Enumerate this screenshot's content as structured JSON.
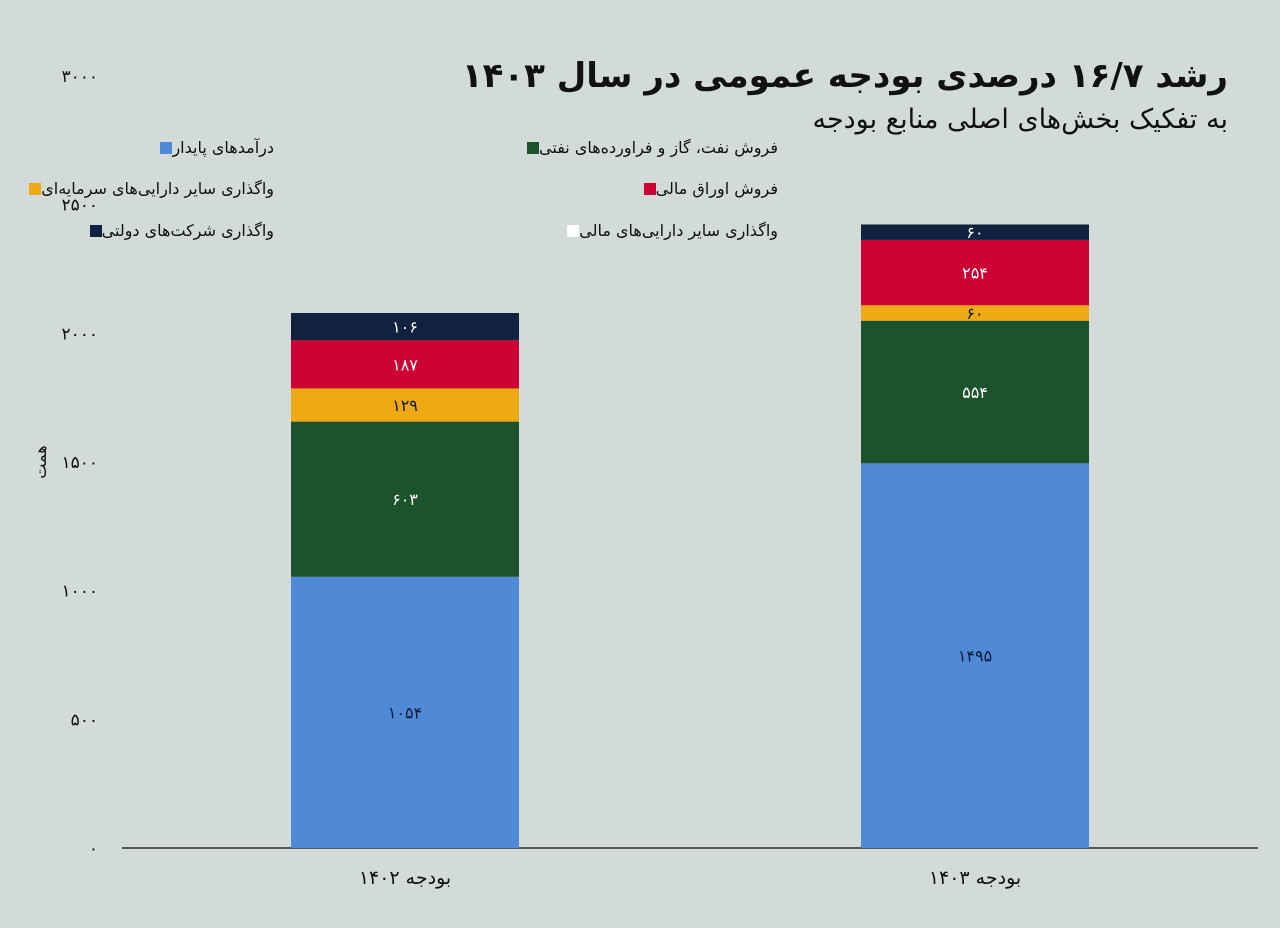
{
  "chart_data": {
    "type": "bar",
    "stacked": true,
    "title": "رشد ۱۶/۷ درصدی بودجه عمومی در سال ۱۴۰۳",
    "subtitle": "به تفکیک بخش‌های اصلی منابع بودجه",
    "ylabel": "همت",
    "xlabel": "",
    "ylim": [
      0,
      3000
    ],
    "yticks": [
      0,
      500,
      1000,
      1500,
      2000,
      2500,
      3000
    ],
    "ytick_labels": [
      "۰",
      "۵۰۰",
      "۱۰۰۰",
      "۱۵۰۰",
      "۲۰۰۰",
      "۲۵۰۰",
      "۳۰۰۰"
    ],
    "categories": [
      "بودجه ۱۴۰۲",
      "بودجه ۱۴۰۳"
    ],
    "series": [
      {
        "name": "درآمدهای پایدار",
        "color": "#5089d6",
        "values": [
          1054,
          1495
        ],
        "labels": [
          "۱۰۵۴",
          "۱۴۹۵"
        ],
        "label_color": "#0d1b3a"
      },
      {
        "name": "فروش نفت، گاز و فراورده‌های نفتی",
        "color": "#1c522c",
        "values": [
          603,
          554
        ],
        "labels": [
          "۶۰۳",
          "۵۵۴"
        ],
        "label_color": "#ffffff"
      },
      {
        "name": "واگذاری سایر دارایی‌های سرمایه‌ای",
        "color": "#eeaa15",
        "values": [
          129,
          60
        ],
        "labels": [
          "۱۲۹",
          "۶۰"
        ],
        "label_color": "#0d1b3a"
      },
      {
        "name": "فروش اوراق مالی",
        "color": "#cd0334",
        "values": [
          187,
          254
        ],
        "labels": [
          "۱۸۷",
          "۲۵۴"
        ],
        "label_color": "#ffffff"
      },
      {
        "name": "واگذاری سایر دارایی‌های مالی",
        "color": "#ffffff",
        "values": [
          0,
          0
        ],
        "labels": [
          "",
          ""
        ],
        "label_color": "#0d1b3a"
      },
      {
        "name": "واگذاری شرکت‌های دولتی",
        "color": "#10223f",
        "values": [
          106,
          60
        ],
        "labels": [
          "۱۰۶",
          "۶۰"
        ],
        "label_color": "#ffffff"
      }
    ],
    "legend_placement": "top",
    "grid": false
  }
}
